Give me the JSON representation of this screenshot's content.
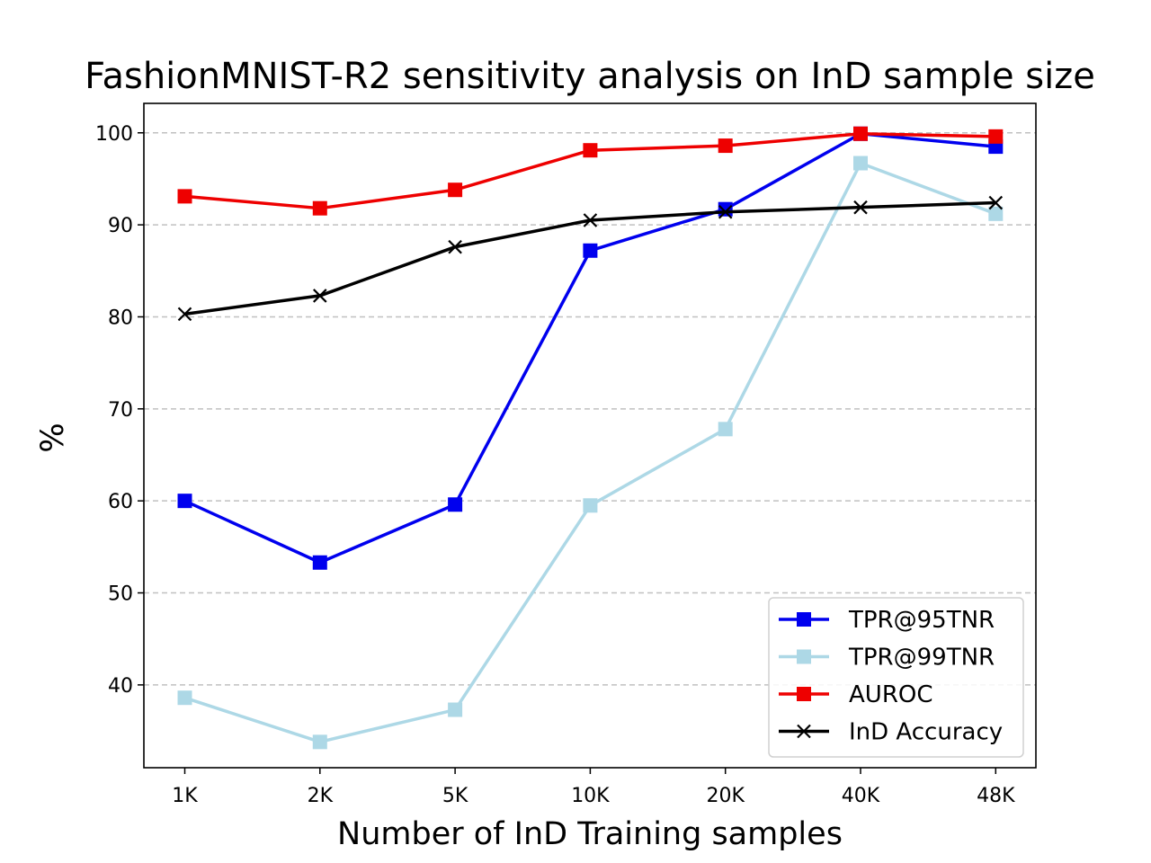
{
  "chart_data": {
    "type": "line",
    "title": "FashionMNIST-R2 sensitivity analysis on InD sample size",
    "xlabel": "Number of InD Training samples",
    "ylabel": "%",
    "categories": [
      "1K",
      "2K",
      "5K",
      "10K",
      "20K",
      "40K",
      "48K"
    ],
    "ylim": [
      31,
      103.2
    ],
    "yticks": [
      40,
      50,
      60,
      70,
      80,
      90,
      100
    ],
    "grid": "horizontal dashed",
    "legend_position": "lower right",
    "series": [
      {
        "name": "TPR@95TNR",
        "color": "#0000ee",
        "marker": "square",
        "values": [
          60.0,
          53.3,
          59.6,
          87.2,
          91.7,
          99.9,
          98.5
        ]
      },
      {
        "name": "TPR@99TNR",
        "color": "#add8e6",
        "marker": "square",
        "values": [
          38.6,
          33.8,
          37.3,
          59.5,
          67.8,
          96.7,
          91.2
        ]
      },
      {
        "name": "AUROC",
        "color": "#ee0000",
        "marker": "square",
        "values": [
          93.1,
          91.8,
          93.8,
          98.1,
          98.6,
          99.9,
          99.6
        ]
      },
      {
        "name": "InD Accuracy",
        "color": "#000000",
        "marker": "x",
        "values": [
          80.3,
          82.3,
          87.6,
          90.5,
          91.4,
          91.9,
          92.4
        ]
      }
    ]
  }
}
